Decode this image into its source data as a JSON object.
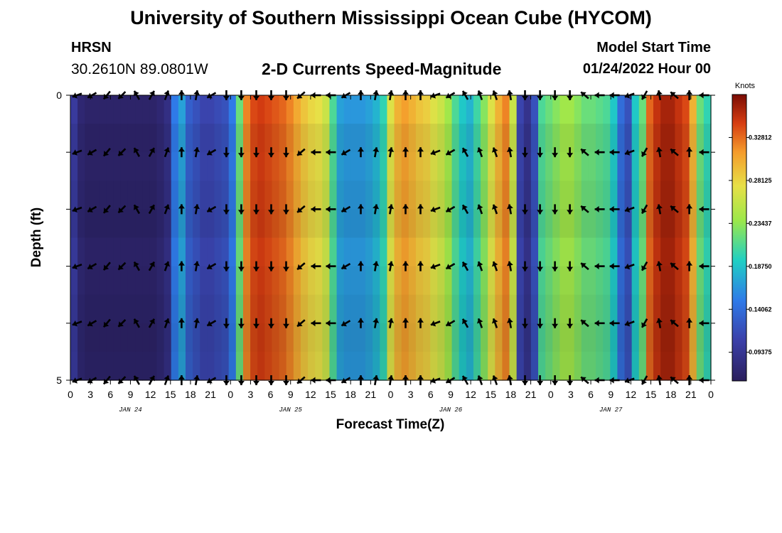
{
  "header": {
    "title": "University of Southern Mississippi Ocean Cube (HYCOM)",
    "station": "HRSN",
    "coords": "30.2610N  89.0801W",
    "subtitle": "2-D Currents Speed-Magnitude",
    "model_start_label": "Model Start Time",
    "model_start_value": "01/24/2022 Hour 00"
  },
  "footer": {
    "title": "University of Southern Mississippi Ocean Cube (HYCOM)"
  },
  "chart_data": {
    "type": "heatmap",
    "title": "2-D Currents Speed-Magnitude",
    "xlabel": "Forecast Time(Z)",
    "ylabel": "Depth (ft)",
    "xlim": [
      0,
      96
    ],
    "ylim": [
      0,
      5
    ],
    "x_tick_labels": [
      "0",
      "3",
      "6",
      "9",
      "12",
      "15",
      "18",
      "21",
      "0",
      "3",
      "6",
      "9",
      "12",
      "15",
      "18",
      "21",
      "0",
      "3",
      "6",
      "9",
      "12",
      "15",
      "18",
      "21",
      "0",
      "3",
      "6",
      "9",
      "12",
      "15",
      "18",
      "21",
      "0"
    ],
    "y_tick_labels": [
      "0",
      "5"
    ],
    "day_labels": [
      "JAN 24",
      "JAN 25",
      "JAN 26",
      "JAN 27"
    ],
    "colorbar": {
      "title": "Knots",
      "min": 0.0625,
      "max": 0.375,
      "tick_values": [
        0.09375,
        0.140625,
        0.1875,
        0.234375,
        0.28125,
        0.328125
      ],
      "tick_labels": [
        "0.09375",
        "0.14062",
        "0.18750",
        "0.23437",
        "0.28125",
        "0.32812"
      ]
    },
    "speed_knots_by_hour": [
      0.1,
      0.075,
      0.07,
      0.07,
      0.07,
      0.07,
      0.07,
      0.07,
      0.07,
      0.07,
      0.07,
      0.07,
      0.075,
      0.085,
      0.15,
      0.17,
      0.13,
      0.12,
      0.11,
      0.11,
      0.115,
      0.12,
      0.15,
      0.22,
      0.32,
      0.34,
      0.345,
      0.34,
      0.335,
      0.33,
      0.32,
      0.305,
      0.29,
      0.28,
      0.275,
      0.26,
      0.21,
      0.17,
      0.165,
      0.165,
      0.165,
      0.17,
      0.18,
      0.2,
      0.27,
      0.3,
      0.31,
      0.3,
      0.29,
      0.285,
      0.27,
      0.26,
      0.24,
      0.21,
      0.19,
      0.18,
      0.205,
      0.23,
      0.27,
      0.3,
      0.32,
      0.26,
      0.11,
      0.09,
      0.12,
      0.21,
      0.22,
      0.23,
      0.24,
      0.24,
      0.23,
      0.22,
      0.22,
      0.215,
      0.21,
      0.19,
      0.14,
      0.12,
      0.19,
      0.22,
      0.33,
      0.35,
      0.36,
      0.36,
      0.35,
      0.34,
      0.3,
      0.22,
      0.2
    ],
    "depth_shading": [
      1.0,
      0.93,
      0.95,
      0.92,
      0.9,
      0.96,
      0.93,
      0.9,
      0.88,
      0.9
    ],
    "vector_depths": [
      0,
      1,
      2,
      3,
      4,
      5
    ],
    "vector_directions_deg": [
      200,
      210,
      230,
      225,
      120,
      60,
      70,
      90,
      80,
      210,
      270,
      270,
      270,
      270,
      270,
      220,
      180,
      180,
      210,
      90,
      80,
      80,
      90,
      90,
      200,
      210,
      120,
      110,
      110,
      100,
      270,
      270,
      270,
      270,
      140,
      180,
      180,
      200,
      240,
      100,
      140,
      90,
      180
    ]
  }
}
